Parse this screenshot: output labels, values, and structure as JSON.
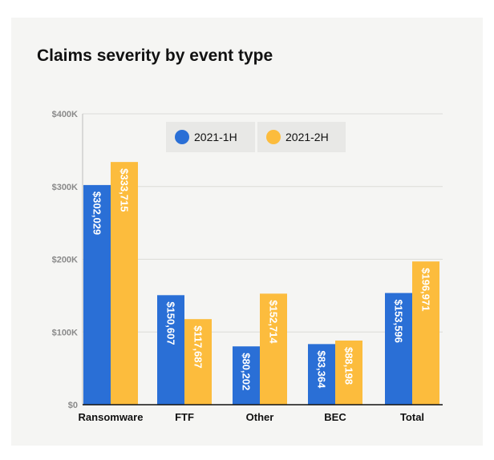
{
  "chart_data": {
    "type": "bar",
    "title": "Claims severity by event type",
    "categories": [
      "Ransomware",
      "FTF",
      "Other",
      "BEC",
      "Total"
    ],
    "series": [
      {
        "name": "2021-1H",
        "color": "#2a6fd6",
        "values": [
          302029,
          150607,
          80202,
          83364,
          153596
        ],
        "labels": [
          "$302,029",
          "$150,607",
          "$80,202",
          "$83,364",
          "$153,596"
        ]
      },
      {
        "name": "2021-2H",
        "color": "#fcbc3d",
        "values": [
          333715,
          117687,
          152714,
          88198,
          196971
        ],
        "labels": [
          "$333,715",
          "$117,687",
          "$152,714",
          "$88,198",
          "$196,971"
        ]
      }
    ],
    "yticks": [
      0,
      100000,
      200000,
      300000,
      400000
    ],
    "ytick_labels": [
      "$0",
      "$100K",
      "$200K",
      "$300K",
      "$400K"
    ],
    "ylim": [
      0,
      400000
    ],
    "grid": true,
    "legend": "top-center"
  }
}
